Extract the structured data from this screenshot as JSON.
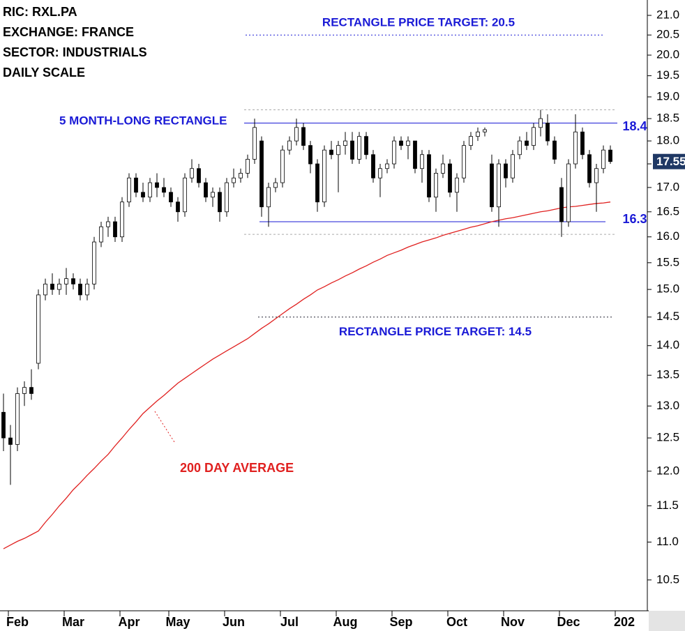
{
  "chart_data": {
    "type": "candlestick",
    "info": [
      "RIC: RXL.PA",
      "EXCHANGE: FRANCE",
      "SECTOR: INDUSTRIALS",
      "DAILY SCALE"
    ],
    "categories": [
      null,
      null,
      "Feb",
      null,
      null,
      null,
      null,
      null,
      null,
      null,
      "Mar",
      null,
      null,
      null,
      null,
      null,
      null,
      null,
      "Apr",
      null,
      null,
      null,
      null,
      null,
      null,
      "May",
      null,
      null,
      null,
      null,
      null,
      null,
      null,
      "Jun",
      null,
      null,
      null,
      null,
      null,
      null,
      null,
      "Jul",
      null,
      null,
      null,
      null,
      null,
      null,
      null,
      "Aug",
      null,
      null,
      null,
      null,
      null,
      null,
      null,
      "Sep",
      null,
      null,
      null,
      null,
      null,
      null,
      null,
      "Oct",
      null,
      null,
      null,
      null,
      null,
      null,
      null,
      "Nov",
      null,
      null,
      null,
      null,
      null,
      null,
      null,
      "Dec",
      null,
      null,
      null,
      null,
      null,
      null,
      null,
      "202",
      null,
      null,
      null
    ],
    "open": [
      12.9,
      12.5,
      12.4,
      13.2,
      13.3,
      13.7,
      14.9,
      15.1,
      15.0,
      15.1,
      15.2,
      15.1,
      14.9,
      15.1,
      15.9,
      16.2,
      16.3,
      16.0,
      16.7,
      17.2,
      16.9,
      16.8,
      17.1,
      17.0,
      16.9,
      16.7,
      16.5,
      17.2,
      17.4,
      17.1,
      16.8,
      16.9,
      16.5,
      17.1,
      17.2,
      17.3,
      17.6,
      18.0,
      16.6,
      17.0,
      17.1,
      17.8,
      18.0,
      18.3,
      17.9,
      17.5,
      16.7,
      17.8,
      17.7,
      17.9,
      18.0,
      17.6,
      18.1,
      17.7,
      17.2,
      17.4,
      17.5,
      18.0,
      17.9,
      18.0,
      17.4,
      17.7,
      16.8,
      17.3,
      17.5,
      16.9,
      17.2,
      17.9,
      18.1,
      18.2,
      17.5,
      16.6,
      17.5,
      17.2,
      17.7,
      18.0,
      17.9,
      18.3,
      18.4,
      18.0,
      17.0,
      16.3,
      17.5,
      18.2,
      17.7,
      17.1,
      17.4,
      17.8,
      null,
      null,
      null,
      null,
      null
    ],
    "high": [
      13.2,
      12.7,
      13.3,
      13.4,
      13.6,
      15.0,
      15.2,
      15.3,
      15.2,
      15.4,
      15.3,
      15.2,
      15.2,
      16.0,
      16.3,
      16.4,
      16.4,
      16.8,
      17.3,
      17.3,
      17.1,
      17.2,
      17.3,
      17.2,
      17.0,
      16.8,
      17.3,
      17.6,
      17.5,
      17.2,
      17.0,
      17.0,
      17.2,
      17.4,
      17.4,
      17.7,
      18.5,
      18.1,
      17.1,
      17.2,
      17.9,
      18.1,
      18.5,
      18.4,
      18.0,
      17.6,
      17.9,
      18.0,
      18.0,
      18.2,
      18.2,
      18.2,
      18.2,
      17.8,
      17.5,
      17.6,
      18.1,
      18.1,
      18.1,
      18.0,
      17.8,
      17.8,
      17.4,
      17.7,
      17.6,
      17.3,
      18.0,
      18.2,
      18.3,
      18.3,
      17.7,
      17.6,
      17.6,
      17.8,
      18.1,
      18.2,
      18.4,
      18.7,
      18.6,
      18.1,
      17.2,
      17.6,
      18.6,
      18.3,
      17.8,
      17.5,
      17.9,
      17.9,
      null,
      null,
      null,
      null,
      null
    ],
    "low": [
      12.3,
      11.8,
      12.3,
      13.0,
      13.1,
      13.6,
      14.8,
      14.9,
      14.9,
      14.9,
      15.0,
      14.8,
      14.8,
      15.0,
      15.8,
      16.0,
      15.9,
      15.9,
      16.6,
      16.8,
      16.7,
      16.7,
      16.8,
      16.8,
      16.6,
      16.3,
      16.4,
      17.1,
      17.0,
      16.7,
      16.6,
      16.3,
      16.4,
      17.0,
      17.1,
      17.2,
      17.5,
      16.4,
      16.2,
      16.9,
      17.0,
      17.7,
      17.9,
      17.8,
      17.3,
      16.5,
      16.6,
      17.6,
      16.9,
      17.7,
      17.5,
      17.5,
      17.6,
      17.1,
      16.8,
      17.3,
      17.4,
      17.8,
      17.6,
      17.3,
      17.1,
      16.7,
      16.5,
      17.2,
      16.8,
      16.5,
      17.1,
      17.8,
      18.0,
      18.1,
      16.5,
      16.2,
      17.0,
      17.1,
      17.6,
      17.8,
      17.8,
      18.1,
      17.9,
      17.5,
      16.0,
      16.2,
      17.4,
      17.6,
      17.0,
      16.5,
      17.3,
      17.5,
      null,
      null,
      null,
      null,
      null
    ],
    "close": [
      12.5,
      12.4,
      13.2,
      13.3,
      13.2,
      14.9,
      15.1,
      15.0,
      15.1,
      15.2,
      15.1,
      14.9,
      15.1,
      15.9,
      16.2,
      16.3,
      16.0,
      16.7,
      17.2,
      16.9,
      16.8,
      17.1,
      17.0,
      16.9,
      16.7,
      16.5,
      17.2,
      17.4,
      17.1,
      16.8,
      16.9,
      16.5,
      17.1,
      17.2,
      17.3,
      17.6,
      18.3,
      16.6,
      17.0,
      17.1,
      17.8,
      18.0,
      18.3,
      17.9,
      17.5,
      16.7,
      17.8,
      17.7,
      17.9,
      18.0,
      17.6,
      18.1,
      17.7,
      17.2,
      17.4,
      17.5,
      18.0,
      17.9,
      18.0,
      17.4,
      17.7,
      16.8,
      17.3,
      17.5,
      16.9,
      17.2,
      17.9,
      18.1,
      18.2,
      18.25,
      16.6,
      17.5,
      17.2,
      17.7,
      18.0,
      17.9,
      18.3,
      18.5,
      18.0,
      17.6,
      16.3,
      17.5,
      18.2,
      17.7,
      17.1,
      17.4,
      17.8,
      17.55,
      null,
      null,
      null,
      null,
      null
    ],
    "up_color": "#ffffff",
    "down_color": "#000000",
    "outline_color": "#000000",
    "ma": {
      "label": "200 DAY AVERAGE",
      "color": "#e0201f",
      "values": [
        10.91,
        10.96,
        11.01,
        11.05,
        11.1,
        11.15,
        11.27,
        11.38,
        11.5,
        11.61,
        11.73,
        11.83,
        11.94,
        12.04,
        12.15,
        12.25,
        12.38,
        12.5,
        12.63,
        12.75,
        12.88,
        12.98,
        13.08,
        13.17,
        13.27,
        13.37,
        13.45,
        13.53,
        13.61,
        13.69,
        13.77,
        13.84,
        13.91,
        13.98,
        14.05,
        14.12,
        14.21,
        14.3,
        14.38,
        14.47,
        14.56,
        14.65,
        14.73,
        14.82,
        14.9,
        14.99,
        15.05,
        15.12,
        15.18,
        15.25,
        15.31,
        15.38,
        15.44,
        15.51,
        15.57,
        15.64,
        15.69,
        15.74,
        15.8,
        15.85,
        15.9,
        15.94,
        15.98,
        16.03,
        16.07,
        16.11,
        16.15,
        16.19,
        16.22,
        16.26,
        16.3,
        16.33,
        16.36,
        16.38,
        16.41,
        16.44,
        16.47,
        16.5,
        16.52,
        16.55,
        16.58,
        16.6,
        16.61,
        16.63,
        16.65,
        16.67,
        16.68,
        16.7,
        null,
        null,
        null,
        null,
        null
      ]
    },
    "pattern_label": "5 MONTH-LONG RECTANGLE",
    "rectangle": [
      18.4,
      16.3
    ],
    "bounds": [
      18.7,
      16.05
    ],
    "line_color": "#1a1ad6",
    "targets": [
      {
        "value": 20.5,
        "label": "RECTANGLE PRICE TARGET: 20.5"
      },
      {
        "value": 14.5,
        "label": "RECTANGLE PRICE TARGET: 14.5"
      }
    ],
    "last_price": 17.55,
    "log_scale": true,
    "ylim": [
      10.11,
      21.4
    ],
    "yticks": [
      10.5,
      {
        "value": 11,
        "label": "11.0"
      },
      11.5,
      {
        "value": 12,
        "label": "12.0"
      },
      12.5,
      {
        "value": 13,
        "label": "13.0"
      },
      13.5,
      {
        "value": 14,
        "label": "14.0"
      },
      14.5,
      {
        "value": 15,
        "label": "15.0"
      },
      15.5,
      {
        "value": 16,
        "label": "16.0"
      },
      16.5,
      {
        "value": 17,
        "label": "17.0"
      },
      17.5,
      {
        "value": 18,
        "label": "18.0"
      },
      18.5,
      {
        "value": 19,
        "label": "19.0"
      },
      19.5,
      {
        "value": 20,
        "label": "20.0"
      },
      20.5,
      {
        "value": 21,
        "label": "21.0"
      }
    ]
  }
}
